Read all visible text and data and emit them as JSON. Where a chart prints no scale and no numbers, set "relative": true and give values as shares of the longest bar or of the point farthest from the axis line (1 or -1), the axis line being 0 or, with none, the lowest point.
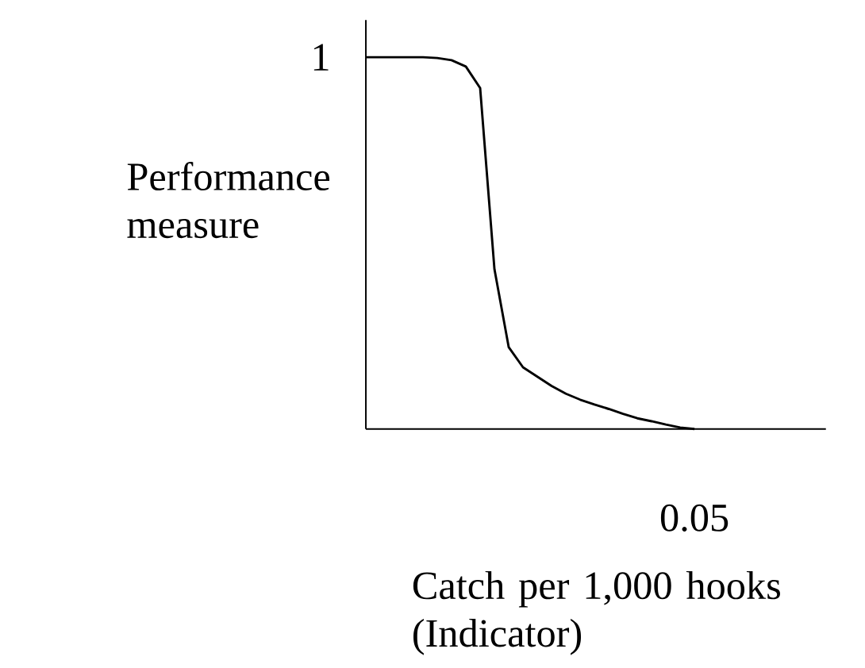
{
  "chart_data": {
    "type": "line",
    "relative": true,
    "xlabel": "Catch per 1,000 hooks (Indicator)",
    "ylabel": "Performance measure",
    "categories": [
      null,
      null,
      null,
      null,
      null,
      null,
      null,
      null,
      null,
      null,
      null,
      null,
      null,
      null,
      null,
      null,
      null,
      null,
      null,
      null,
      null,
      null,
      null,
      null
    ],
    "series": [
      {
        "color": "#000000",
        "values": [
          1,
          1,
          1,
          1,
          1,
          0.998,
          0.992,
          0.975,
          0.917,
          0.43,
          0.22,
          0.166,
          0.141,
          0.116,
          0.095,
          0.079,
          0.066,
          0.054,
          0.041,
          0.029,
          0.021,
          0.012,
          0.004,
          0
        ]
      }
    ],
    "annotations": [
      "1",
      "0.05"
    ],
    "marker": "none",
    "line_style": "solid"
  }
}
